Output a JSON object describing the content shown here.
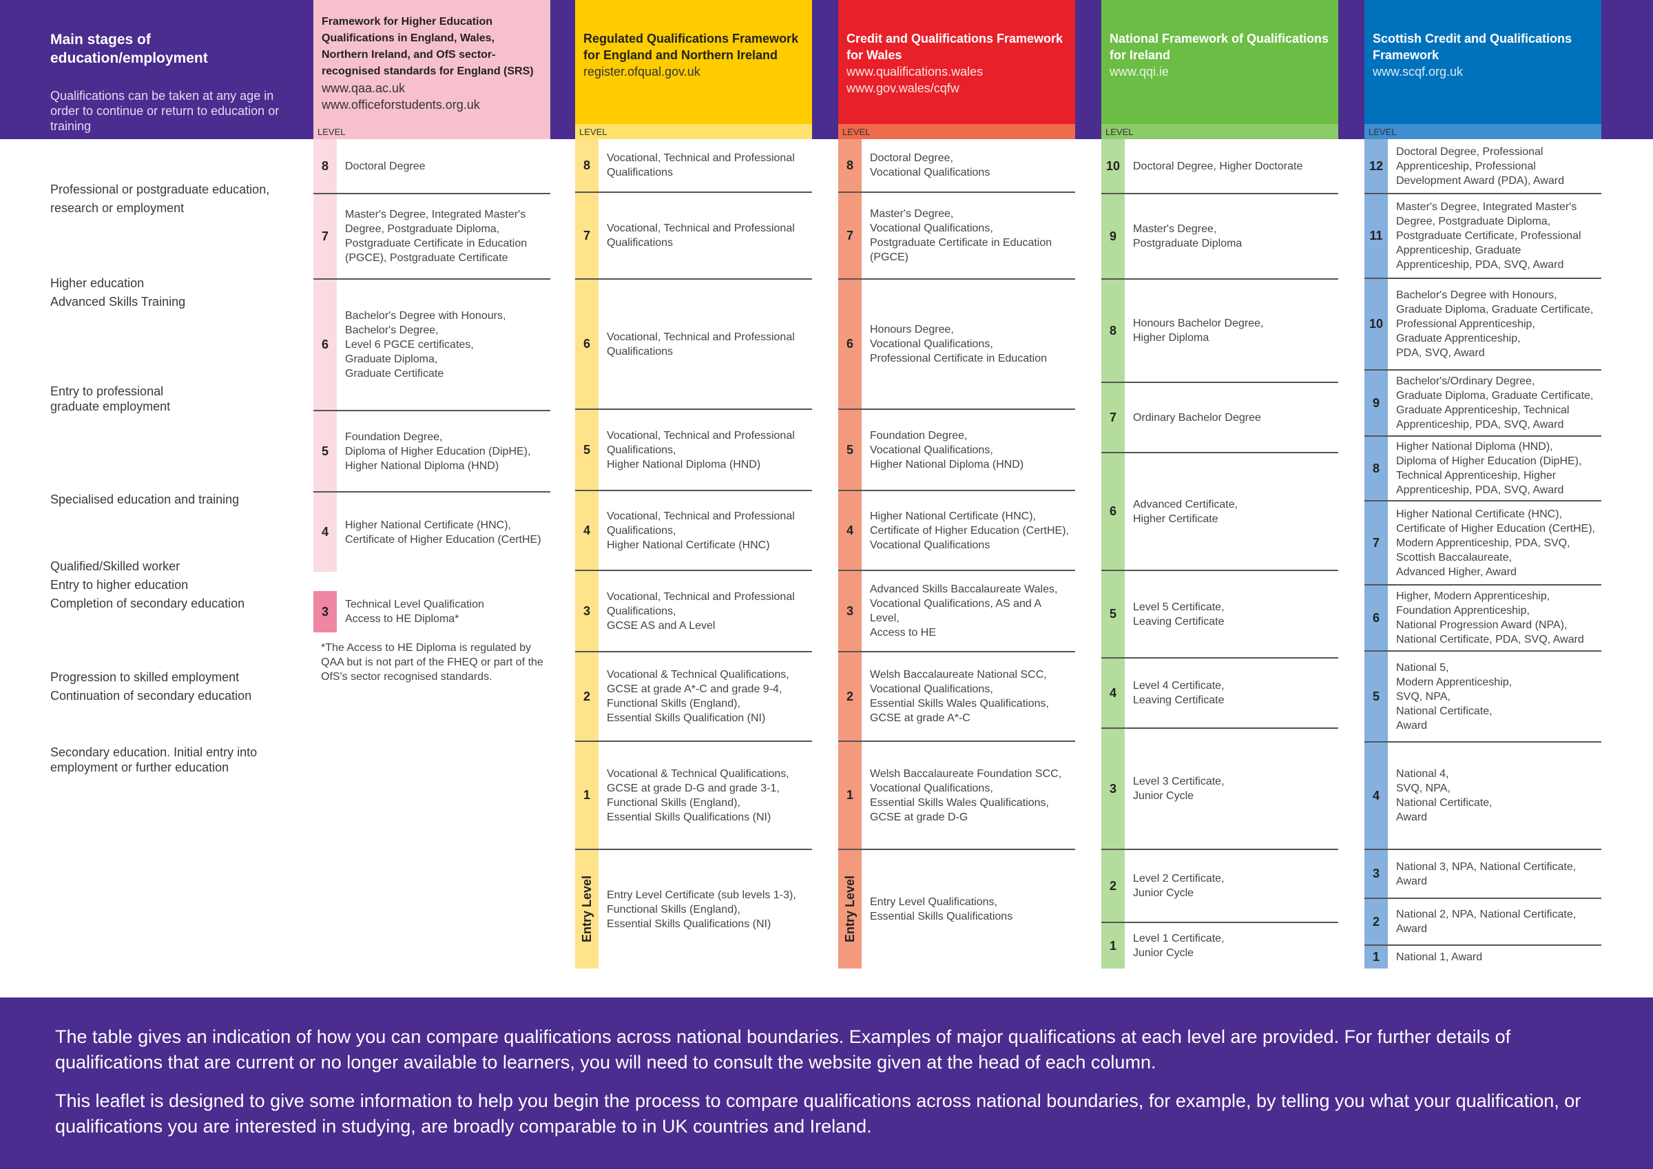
{
  "intro": {
    "title": "Main stages of education/employment",
    "subtitle": "Qualifications can be taken at any age in order to continue or return to education or training"
  },
  "stages": [
    "Professional or postgraduate education,\nresearch or employment",
    "Higher education\nAdvanced Skills Training",
    "Entry to professional\ngraduate employment",
    "Specialised education and training",
    "Qualified/Skilled worker\nEntry to higher education\nCompletion of secondary education",
    "Progression to skilled employment\nContinuation of secondary education",
    "Secondary education. Initial entry into\nemployment or further education"
  ],
  "level_label": "LEVEL",
  "columns": [
    {
      "title": "Framework for Higher Education Qualifications in England, Wales, Northern Ireland, and OfS sector-recognised standards for England (SRS)",
      "urls": "www.qaa.ac.uk\nwww.officeforstudents.org.uk",
      "colors": {
        "head": "#f6c1cc",
        "strip": "#f6c1cc",
        "num": "#fadbe1",
        "num_hi": "#ee86a4"
      },
      "rows": [
        {
          "level": "8",
          "text": "Doctoral Degree"
        },
        {
          "level": "7",
          "text": "Master's Degree, Integrated Master's Degree, Postgraduate Diploma, Postgraduate Certificate in Education (PGCE), Postgraduate Certificate"
        },
        {
          "level": "6",
          "text": "Bachelor's Degree with Honours,\nBachelor's Degree,\nLevel 6 PGCE certificates,\nGraduate Diploma,\nGraduate Certificate"
        },
        {
          "level": "5",
          "text": "Foundation Degree,\nDiploma of Higher Education (DipHE),\nHigher National Diploma (HND)"
        },
        {
          "level": "4",
          "text": "Higher National Certificate (HNC),\nCertificate of Higher Education (CertHE)"
        },
        {
          "level": "3",
          "text": "Technical Level Qualification\nAccess to HE Diploma*"
        }
      ],
      "footnote": "*The Access to HE Diploma is regulated by QAA but is not part of the FHEQ or part of the OfS's sector recognised standards."
    },
    {
      "title": "Regulated Qualifications Framework for England and Northern Ireland",
      "urls": "register.ofqual.gov.uk",
      "colors": {
        "head": "#ffcc00",
        "strip": "#ffe16d",
        "num": "#ffe38a"
      },
      "rows": [
        {
          "level": "8",
          "text": "Vocational, Technical and Professional Qualifications"
        },
        {
          "level": "7",
          "text": "Vocational, Technical and Professional Qualifications"
        },
        {
          "level": "6",
          "text": "Vocational, Technical and Professional Qualifications"
        },
        {
          "level": "5",
          "text": "Vocational, Technical and Professional Qualifications,\nHigher National Diploma (HND)"
        },
        {
          "level": "4",
          "text": "Vocational, Technical and Professional Qualifications,\nHigher National Certificate (HNC)"
        },
        {
          "level": "3",
          "text": "Vocational, Technical and Professional Qualifications,\nGCSE AS and A Level"
        },
        {
          "level": "2",
          "text": "Vocational & Technical Qualifications,\nGCSE at grade A*-C and grade 9-4,\nFunctional Skills (England),\nEssential Skills Qualification (NI)"
        },
        {
          "level": "1",
          "text": "Vocational & Technical Qualifications,\nGCSE at grade D-G and grade 3-1,\nFunctional Skills (England),\nEssential Skills Qualifications (NI)"
        },
        {
          "level": "Entry Level",
          "text": "Entry Level Certificate (sub levels 1-3),\nFunctional Skills (England),\nEssential Skills Qualifications (NI)"
        }
      ]
    },
    {
      "title": "Credit and Qualifications Framework for Wales",
      "urls": "www.qualifications.wales\nwww.gov.wales/cqfw",
      "colors": {
        "head": "#e8202a",
        "strip": "#ef6a4a",
        "num": "#f39a7c"
      },
      "rows": [
        {
          "level": "8",
          "text": "Doctoral Degree,\nVocational Qualifications"
        },
        {
          "level": "7",
          "text": "Master's Degree,\nVocational Qualifications,\nPostgraduate Certificate in Education (PGCE)"
        },
        {
          "level": "6",
          "text": "Honours Degree,\nVocational Qualifications,\nProfessional Certificate in Education"
        },
        {
          "level": "5",
          "text": "Foundation Degree,\nVocational Qualifications,\nHigher National Diploma (HND)"
        },
        {
          "level": "4",
          "text": "Higher National Certificate (HNC),\nCertificate of Higher Education (CertHE),\nVocational Qualifications"
        },
        {
          "level": "3",
          "text": "Advanced Skills Baccalaureate Wales,\nVocational Qualifications, AS and A Level,\nAccess to HE"
        },
        {
          "level": "2",
          "text": "Welsh Baccalaureate National SCC,\nVocational Qualifications,\nEssential Skills Wales Qualifications,\nGCSE at grade A*-C"
        },
        {
          "level": "1",
          "text": "Welsh Baccalaureate Foundation SCC,\nVocational Qualifications,\nEssential Skills Wales Qualifications,\nGCSE at grade D-G"
        },
        {
          "level": "Entry Level",
          "text": "Entry Level Qualifications,\nEssential Skills Qualifications"
        }
      ]
    },
    {
      "title": "National Framework of Qualifications for Ireland",
      "urls": "www.qqi.ie",
      "colors": {
        "head": "#6cbd45",
        "strip": "#8ccb6a",
        "num": "#b4dc9c"
      },
      "rows": [
        {
          "level": "10",
          "text": "Doctoral Degree, Higher Doctorate"
        },
        {
          "level": "9",
          "text": "Master's Degree,\nPostgraduate Diploma"
        },
        {
          "level": "8",
          "text": "Honours Bachelor Degree,\nHigher Diploma"
        },
        {
          "level": "7",
          "text": "Ordinary Bachelor Degree"
        },
        {
          "level": "6",
          "text": "Advanced Certificate,\nHigher Certificate"
        },
        {
          "level": "5",
          "text": "Level 5 Certificate,\nLeaving Certificate"
        },
        {
          "level": "4",
          "text": "Level 4 Certificate,\nLeaving Certificate"
        },
        {
          "level": "3",
          "text": "Level 3 Certificate,\nJunior Cycle"
        },
        {
          "level": "2",
          "text": "Level 2 Certificate,\nJunior Cycle"
        },
        {
          "level": "1",
          "text": "Level 1 Certificate,\nJunior Cycle"
        }
      ]
    },
    {
      "title": "Scottish Credit and Qualifications Framework",
      "urls": "www.scqf.org.uk",
      "colors": {
        "head": "#0072bc",
        "strip": "#3f8ecf",
        "num": "#86b1df"
      },
      "rows": [
        {
          "level": "12",
          "text": "Doctoral Degree, Professional Apprenticeship, Professional Development Award (PDA), Award"
        },
        {
          "level": "11",
          "text": "Master's Degree, Integrated Master's Degree, Postgraduate Diploma, Postgraduate Certificate, Professional Apprenticeship, Graduate Apprenticeship, PDA, SVQ, Award"
        },
        {
          "level": "10",
          "text": "Bachelor's Degree with Honours,\nGraduate Diploma, Graduate Certificate,\nProfessional Apprenticeship,\nGraduate Apprenticeship,\nPDA, SVQ, Award"
        },
        {
          "level": "9",
          "text": "Bachelor's/Ordinary Degree,\nGraduate Diploma, Graduate Certificate,\nGraduate Apprenticeship, Technical Apprenticeship, PDA, SVQ, Award"
        },
        {
          "level": "8",
          "text": "Higher National Diploma (HND),\nDiploma of Higher Education (DipHE),\nTechnical Apprenticeship, Higher Apprenticeship, PDA, SVQ, Award"
        },
        {
          "level": "7",
          "text": "Higher National Certificate (HNC),\nCertificate of Higher Education (CertHE),\nModern Apprenticeship, PDA, SVQ,\nScottish Baccalaureate,\nAdvanced Higher, Award"
        },
        {
          "level": "6",
          "text": "Higher, Modern Apprenticeship,\nFoundation Apprenticeship,\nNational Progression Award (NPA),\nNational Certificate, PDA, SVQ, Award"
        },
        {
          "level": "5",
          "text": "National 5,\nModern Apprenticeship,\nSVQ, NPA,\nNational Certificate,\nAward"
        },
        {
          "level": "4",
          "text": "National 4,\nSVQ, NPA,\nNational Certificate,\nAward"
        },
        {
          "level": "3",
          "text": "National 3, NPA, National Certificate,\nAward"
        },
        {
          "level": "2",
          "text": "National 2, NPA, National Certificate,\nAward"
        },
        {
          "level": "1",
          "text": "National 1, Award"
        }
      ]
    }
  ],
  "bottom": {
    "p1": "The table gives an indication of how you can compare qualifications across national boundaries. Examples of major qualifications at each level are provided. For further details of qualifications that are current or no longer available to learners, you will need to consult the website given at the head of each column.",
    "p2": "This leaflet is designed to give some information to help you begin the process to compare qualifications across national boundaries, for example, by telling you what your qualification, or qualifications you are interested in studying, are broadly comparable to in UK countries and Ireland."
  }
}
